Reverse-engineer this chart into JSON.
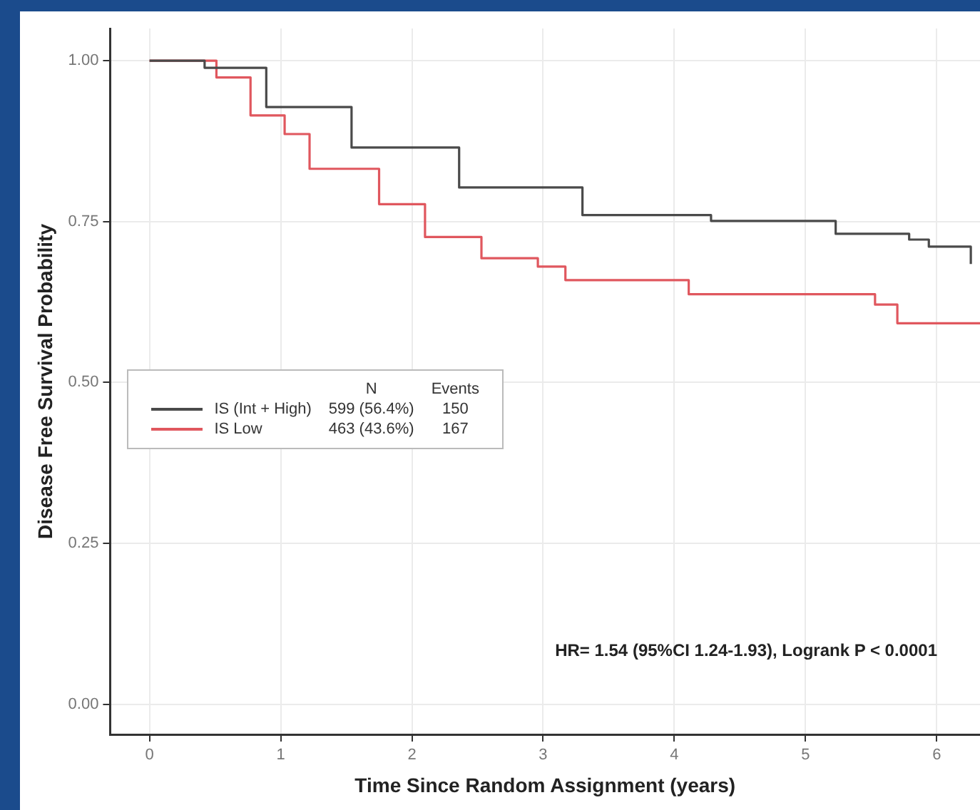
{
  "chart_data": {
    "type": "step",
    "xlabel": "Time Since Random Assignment (years)",
    "ylabel": "Disease Free Survival Probability",
    "xlim": [
      -0.3,
      6.33
    ],
    "xticks": [
      0,
      1,
      2,
      3,
      4,
      5,
      6
    ],
    "ylim": [
      -0.047,
      1.05
    ],
    "yticks": [
      {
        "value": 0,
        "label": "0.00"
      },
      {
        "value": 0.25,
        "label": "0.25"
      },
      {
        "value": 0.5,
        "label": "0.50"
      },
      {
        "value": 0.75,
        "label": "0.75"
      },
      {
        "value": 1,
        "label": "1.00"
      }
    ],
    "grid": true,
    "legend": "center left",
    "marker": "none",
    "series": [
      {
        "name": "IS (Int + High)",
        "color": "#4a4a4a",
        "x": [
          0,
          0.02,
          0.42,
          0.89,
          1.54,
          2.36,
          3.3,
          4.28,
          5.23,
          5.79,
          5.94,
          6.25,
          6.26
        ],
        "values": [
          1,
          1,
          0.989,
          0.928,
          0.865,
          0.803,
          0.76,
          0.751,
          0.731,
          0.722,
          0.711,
          0.711,
          0.684
        ]
      },
      {
        "name": "IS Low",
        "color": "#e0575e",
        "x": [
          0,
          0.02,
          0.51,
          0.77,
          1.03,
          1.22,
          1.75,
          2.1,
          2.53,
          2.96,
          3.17,
          4.11,
          5.53,
          5.7,
          6.33
        ],
        "values": [
          1,
          1,
          0.974,
          0.915,
          0.886,
          0.832,
          0.777,
          0.726,
          0.693,
          0.68,
          0.659,
          0.637,
          0.621,
          0.592,
          0.592
        ]
      }
    ],
    "annotations": [
      "N",
      "Events",
      "599 (56.4%)",
      "150",
      "463 (43.6%)",
      "167",
      "HR= 1.54 (95%CI 1.24-1.93), Logrank P < 0.0001"
    ]
  }
}
